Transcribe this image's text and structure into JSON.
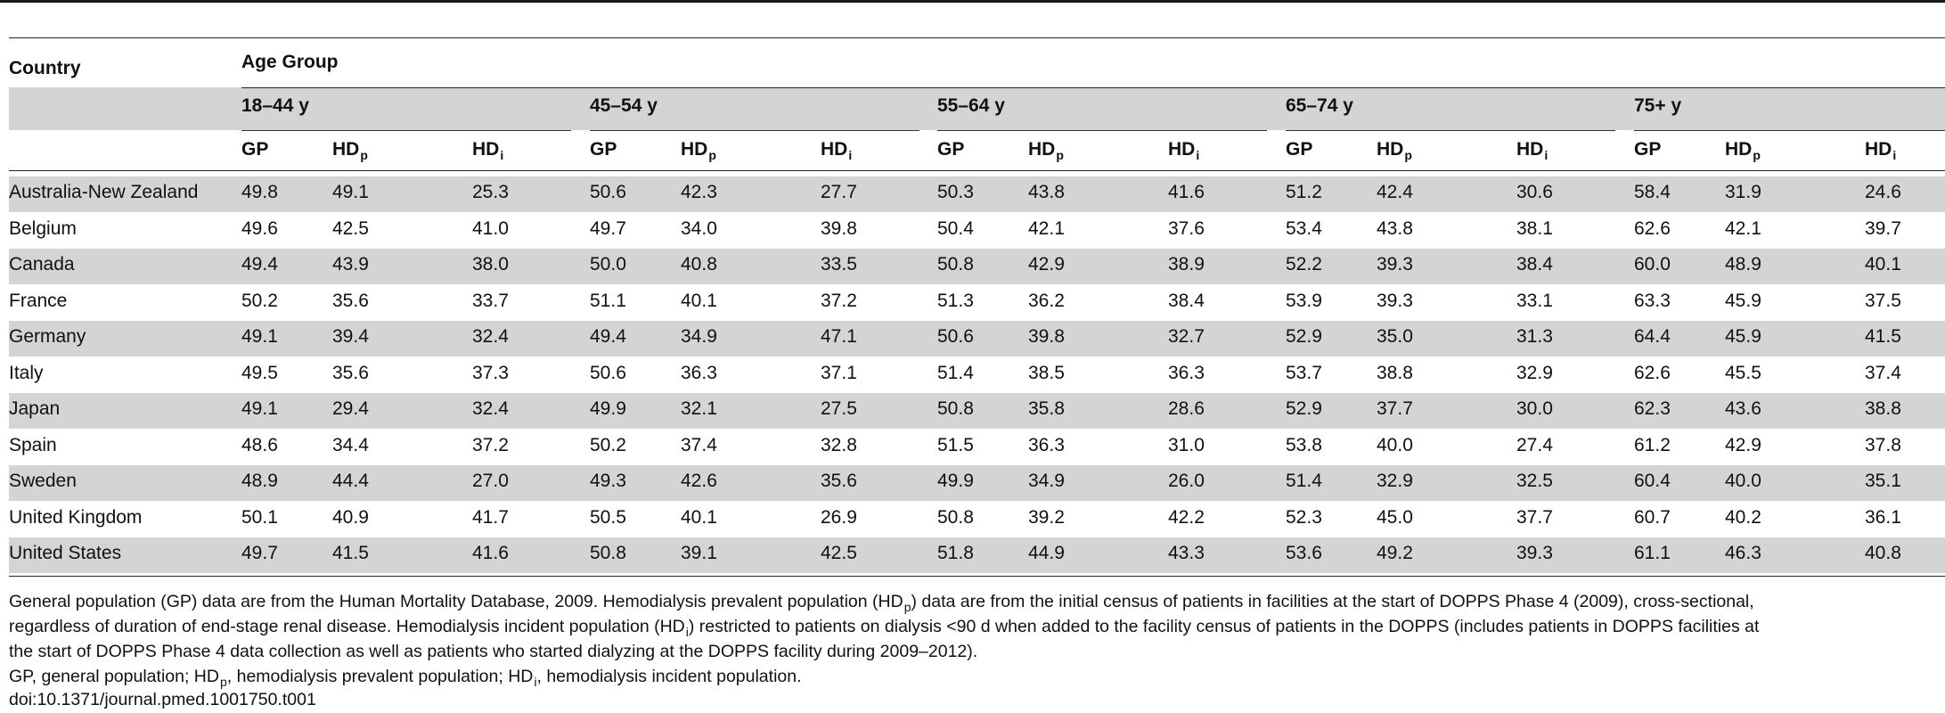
{
  "table": {
    "country_header": "Country",
    "age_group_header": "Age Group",
    "age_groups": [
      "18–44 y",
      "45–54 y",
      "55–64 y",
      "65–74 y",
      "75+ y"
    ],
    "sub_headers": [
      {
        "base": "GP",
        "sub": ""
      },
      {
        "base": "HD",
        "sub": "p"
      },
      {
        "base": "HD",
        "sub": "i"
      }
    ],
    "rows": [
      {
        "country": "Australia-New Zealand",
        "values": [
          "49.8",
          "49.1",
          "25.3",
          "50.6",
          "42.3",
          "27.7",
          "50.3",
          "43.8",
          "41.6",
          "51.2",
          "42.4",
          "30.6",
          "58.4",
          "31.9",
          "24.6"
        ]
      },
      {
        "country": "Belgium",
        "values": [
          "49.6",
          "42.5",
          "41.0",
          "49.7",
          "34.0",
          "39.8",
          "50.4",
          "42.1",
          "37.6",
          "53.4",
          "43.8",
          "38.1",
          "62.6",
          "42.1",
          "39.7"
        ]
      },
      {
        "country": "Canada",
        "values": [
          "49.4",
          "43.9",
          "38.0",
          "50.0",
          "40.8",
          "33.5",
          "50.8",
          "42.9",
          "38.9",
          "52.2",
          "39.3",
          "38.4",
          "60.0",
          "48.9",
          "40.1"
        ]
      },
      {
        "country": "France",
        "values": [
          "50.2",
          "35.6",
          "33.7",
          "51.1",
          "40.1",
          "37.2",
          "51.3",
          "36.2",
          "38.4",
          "53.9",
          "39.3",
          "33.1",
          "63.3",
          "45.9",
          "37.5"
        ]
      },
      {
        "country": "Germany",
        "values": [
          "49.1",
          "39.4",
          "32.4",
          "49.4",
          "34.9",
          "47.1",
          "50.6",
          "39.8",
          "32.7",
          "52.9",
          "35.0",
          "31.3",
          "64.4",
          "45.9",
          "41.5"
        ]
      },
      {
        "country": "Italy",
        "values": [
          "49.5",
          "35.6",
          "37.3",
          "50.6",
          "36.3",
          "37.1",
          "51.4",
          "38.5",
          "36.3",
          "53.7",
          "38.8",
          "32.9",
          "62.6",
          "45.5",
          "37.4"
        ]
      },
      {
        "country": "Japan",
        "values": [
          "49.1",
          "29.4",
          "32.4",
          "49.9",
          "32.1",
          "27.5",
          "50.8",
          "35.8",
          "28.6",
          "52.9",
          "37.7",
          "30.0",
          "62.3",
          "43.6",
          "38.8"
        ]
      },
      {
        "country": "Spain",
        "values": [
          "48.6",
          "34.4",
          "37.2",
          "50.2",
          "37.4",
          "32.8",
          "51.5",
          "36.3",
          "31.0",
          "53.8",
          "40.0",
          "27.4",
          "61.2",
          "42.9",
          "37.8"
        ]
      },
      {
        "country": "Sweden",
        "values": [
          "48.9",
          "44.4",
          "27.0",
          "49.3",
          "42.6",
          "35.6",
          "49.9",
          "34.9",
          "26.0",
          "51.4",
          "32.9",
          "32.5",
          "60.4",
          "40.0",
          "35.1"
        ]
      },
      {
        "country": "United Kingdom",
        "values": [
          "50.1",
          "40.9",
          "41.7",
          "50.5",
          "40.1",
          "26.9",
          "50.8",
          "39.2",
          "42.2",
          "52.3",
          "45.0",
          "37.7",
          "60.7",
          "40.2",
          "36.1"
        ]
      },
      {
        "country": "United States",
        "values": [
          "49.7",
          "41.5",
          "41.6",
          "50.8",
          "39.1",
          "42.5",
          "51.8",
          "44.9",
          "43.3",
          "53.6",
          "49.2",
          "39.3",
          "61.1",
          "46.3",
          "40.8"
        ]
      }
    ]
  },
  "footnotes": {
    "line1": [
      {
        "t": "General population (GP) data are from the Human Mortality Database, 2009. Hemodialysis prevalent population (HD"
      },
      {
        "t": "p",
        "sub": true
      },
      {
        "t": ") data are from the initial census of patients in facilities at the start of DOPPS Phase 4 (2009), cross-sectional,"
      }
    ],
    "line2": [
      {
        "t": "regardless of duration of end-stage renal disease. Hemodialysis incident population (HD"
      },
      {
        "t": "i",
        "sub": true
      },
      {
        "t": ") restricted to patients on dialysis <90 d when added to the facility census of patients in the DOPPS (includes patients in DOPPS facilities at"
      }
    ],
    "line3": [
      {
        "t": "the start of DOPPS Phase 4 data collection as well as patients who started dialyzing at the DOPPS facility during 2009–2012)."
      }
    ],
    "line4": [
      {
        "t": "GP, general population; HD"
      },
      {
        "t": "p",
        "sub": true
      },
      {
        "t": ", hemodialysis prevalent population; HD"
      },
      {
        "t": "i",
        "sub": true
      },
      {
        "t": ", hemodialysis incident population."
      }
    ],
    "doi": "doi:10.1371/journal.pmed.1001750.t001"
  }
}
